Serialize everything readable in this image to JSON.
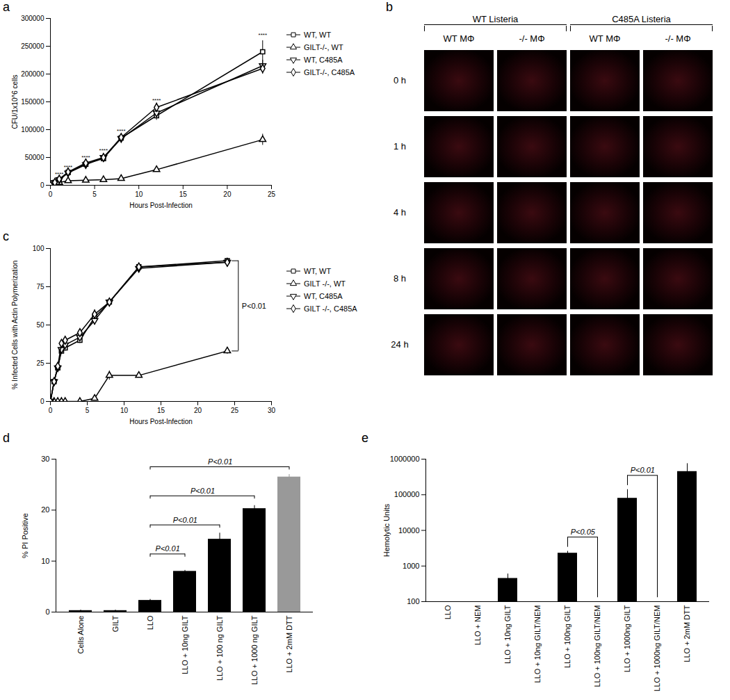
{
  "chart_data": [
    {
      "panel": "a",
      "type": "line",
      "x_label": "Hours Post-Infection",
      "y_label": "CFU/1x10^6 cells",
      "x": [
        0,
        0.5,
        1,
        2,
        4,
        6,
        8,
        12,
        24
      ],
      "xlim": [
        0,
        25
      ],
      "xticks": [
        0,
        5,
        10,
        15,
        20,
        25
      ],
      "ylim": [
        0,
        300000
      ],
      "yticks": [
        0,
        50000,
        100000,
        150000,
        200000,
        250000,
        300000
      ],
      "grid": false,
      "legend": "right",
      "series": [
        {
          "name": "WT, WT",
          "color": "#000000",
          "marker": "square",
          "values": [
            0,
            5000,
            10000,
            23000,
            38000,
            48000,
            85000,
            125000,
            240000
          ],
          "errors": [
            0,
            1000,
            1500,
            2000,
            3000,
            4000,
            5000,
            8000,
            20000
          ]
        },
        {
          "name": "GILT-/-, WT",
          "color": "#000000",
          "marker": "triangle",
          "values": [
            0,
            3000,
            5000,
            8000,
            9000,
            10000,
            12000,
            28000,
            82000
          ],
          "errors": [
            0,
            500,
            800,
            1000,
            1500,
            1500,
            2000,
            3000,
            10000
          ]
        },
        {
          "name": "WT, C485A",
          "color": "#000000",
          "marker": "triangle-down",
          "values": [
            0,
            5000,
            10000,
            22000,
            37000,
            50000,
            84000,
            130000,
            215000
          ],
          "errors": [
            0,
            1000,
            1500,
            2000,
            3000,
            4000,
            5000,
            8000,
            10000
          ]
        },
        {
          "name": "GILT-/-, C485A",
          "color": "#000000",
          "marker": "diamond",
          "values": [
            0,
            5000,
            11000,
            24000,
            40000,
            50000,
            86000,
            140000,
            210000
          ],
          "errors": [
            0,
            1000,
            1500,
            2000,
            3000,
            4000,
            5000,
            8000,
            10000
          ]
        }
      ],
      "annotations": [
        {
          "x": 1,
          "y": 20000,
          "text": "****"
        },
        {
          "x": 2,
          "y": 33000,
          "text": "****"
        },
        {
          "x": 4,
          "y": 50000,
          "text": "****"
        },
        {
          "x": 6,
          "y": 63000,
          "text": "****"
        },
        {
          "x": 8,
          "y": 98000,
          "text": "****"
        },
        {
          "x": 12,
          "y": 153000,
          "text": "****"
        },
        {
          "x": 24,
          "y": 270000,
          "text": "****"
        }
      ]
    },
    {
      "panel": "b",
      "type": "image_grid",
      "groups": [
        "WT Listeria",
        "C485A Listeria"
      ],
      "columns": [
        "WT MΦ",
        "-/- MΦ",
        "WT MΦ",
        "-/- MΦ"
      ],
      "rows": [
        "0 h",
        "1 h",
        "4 h",
        "8 h",
        "24 h"
      ]
    },
    {
      "panel": "c",
      "type": "line",
      "x_label": "Hours Post-Infection",
      "y_label": "% Infected Cells with Actin Polymerization",
      "x": [
        0,
        0.5,
        1,
        1.5,
        2,
        4,
        6,
        8,
        12,
        24
      ],
      "xlim": [
        0,
        30
      ],
      "xticks": [
        0,
        5,
        10,
        15,
        20,
        25,
        30
      ],
      "ylim": [
        0,
        100
      ],
      "yticks": [
        0,
        25,
        50,
        75,
        100
      ],
      "grid": false,
      "legend": "right",
      "series": [
        {
          "name": "WT, WT",
          "color": "#000000",
          "marker": "square",
          "values": [
            0,
            13,
            22,
            33,
            35,
            40,
            55,
            65,
            88,
            92
          ],
          "errors": [
            0,
            1,
            1,
            2,
            2,
            2,
            3,
            2,
            2,
            1
          ]
        },
        {
          "name": "GILT -/-, WT",
          "color": "#000000",
          "marker": "triangle",
          "values": [
            0,
            0,
            0,
            0,
            0,
            0,
            2,
            17,
            17,
            33
          ],
          "errors": [
            0,
            0,
            0,
            0,
            0,
            0,
            0,
            3,
            1,
            2
          ]
        },
        {
          "name": "WT, C485A",
          "color": "#000000",
          "marker": "triangle-down",
          "values": [
            0,
            13,
            22,
            34,
            37,
            42,
            53,
            65,
            87,
            91
          ],
          "errors": [
            0,
            1,
            1,
            2,
            2,
            2,
            3,
            2,
            2,
            1
          ]
        },
        {
          "name": "GILT -/-, C485A",
          "color": "#000000",
          "marker": "diamond",
          "values": [
            0,
            13,
            23,
            38,
            40,
            45,
            57,
            65,
            88,
            91
          ],
          "errors": [
            0,
            1,
            1,
            2,
            2,
            2,
            3,
            2,
            2,
            1
          ]
        }
      ],
      "comparisons": [
        {
          "x": 24,
          "from": "GILT -/-, WT",
          "to": "WT, WT",
          "label": "P<0.01"
        }
      ]
    },
    {
      "panel": "d",
      "type": "bar",
      "y_label": "% PI Positive",
      "categories": [
        "Cells Alone",
        "GILT",
        "LLO",
        "LLO + 10ng GILT",
        "LLO + 100 ng GILT",
        "LLO + 1000 ng GILT",
        "LLO + 2mM DTT"
      ],
      "values": [
        0.3,
        0.3,
        2.3,
        8,
        14.3,
        20.3,
        26.5
      ],
      "errors": [
        0.1,
        0.1,
        0.2,
        0.2,
        1.2,
        0.6,
        0.5
      ],
      "colors": [
        "#000000",
        "#000000",
        "#000000",
        "#000000",
        "#000000",
        "#000000",
        "#999999"
      ],
      "ylim": [
        0,
        30
      ],
      "yticks": [
        0,
        10,
        20,
        30
      ],
      "grid": false,
      "comparisons": [
        {
          "from": "LLO",
          "to": "LLO + 10ng GILT",
          "label": "P<0.01"
        },
        {
          "from": "LLO",
          "to": "LLO + 100 ng GILT",
          "label": "P<0.01"
        },
        {
          "from": "LLO",
          "to": "LLO + 1000 ng GILT",
          "label": "P<0.01"
        },
        {
          "from": "LLO",
          "to": "LLO + 2mM DTT",
          "label": "P<0.01"
        }
      ]
    },
    {
      "panel": "e",
      "type": "bar",
      "y_label": "Hemolytic Units",
      "log": "y",
      "categories": [
        "LLO",
        "LLO + NEM",
        "LLO + 10ng GILT",
        "LLO + 10ng GILT/NEM",
        "LLO + 100ng GILT",
        "LLO + 100ng GILT/NEM",
        "LLO + 1000ng GILT",
        "LLO + 1000ng GILT/NEM",
        "LLO + 2mM DTT"
      ],
      "values": [
        100,
        100,
        450,
        100,
        2300,
        100,
        80000,
        100,
        450000
      ],
      "errors": [
        0,
        0,
        150,
        0,
        300,
        0,
        60000,
        0,
        300000
      ],
      "color": "#000000",
      "ylim": [
        100,
        1000000
      ],
      "yticks": [
        100,
        1000,
        10000,
        100000,
        1000000
      ],
      "grid": false,
      "comparisons": [
        {
          "from": "LLO + 100ng GILT",
          "to": "LLO + 100ng GILT/NEM",
          "label": "P<0.05"
        },
        {
          "from": "LLO + 1000ng GILT",
          "to": "LLO + 1000ng GILT/NEM",
          "label": "P<0.01"
        }
      ]
    }
  ]
}
